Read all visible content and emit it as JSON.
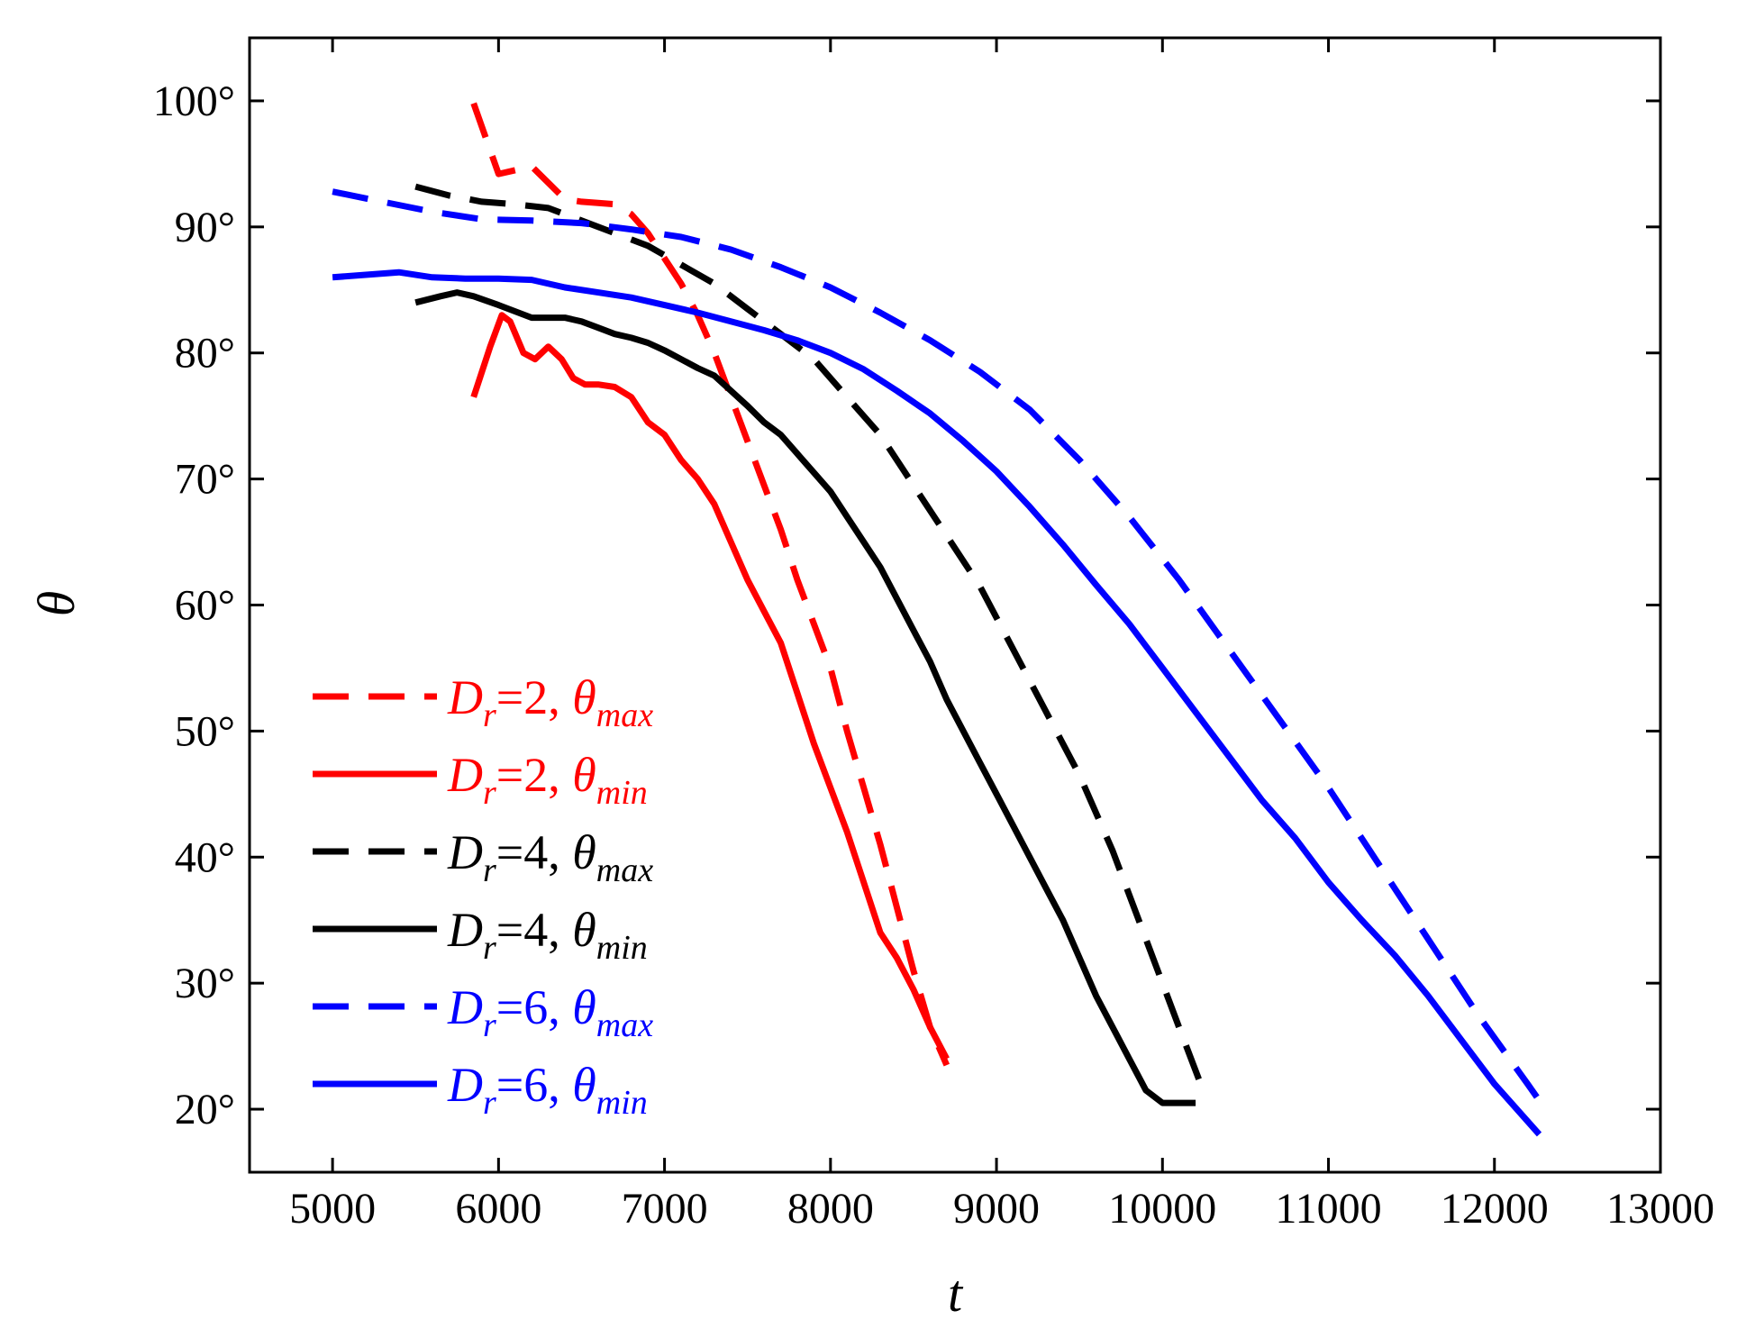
{
  "chart_data": {
    "type": "line",
    "title": "",
    "xlabel": "t",
    "ylabel": "θ",
    "xlim": [
      4500,
      13000
    ],
    "ylim": [
      15,
      105
    ],
    "xticks": [
      5000,
      6000,
      7000,
      8000,
      9000,
      10000,
      11000,
      12000,
      13000
    ],
    "yticks": [
      20,
      30,
      40,
      50,
      60,
      70,
      80,
      90,
      100
    ],
    "xtick_labels": [
      "5000",
      "6000",
      "7000",
      "8000",
      "9000",
      "10000",
      "11000",
      "12000",
      "13000"
    ],
    "ytick_labels": [
      "20°",
      "30°",
      "40°",
      "50°",
      "60°",
      "70°",
      "80°",
      "90°",
      "100°"
    ],
    "grid": false,
    "legend_position": "bottom-left",
    "series": [
      {
        "name": "Dr=2, θmax",
        "legend": {
          "D": "D",
          "sub1": "r",
          "eq": "=2, ",
          "theta": "θ",
          "sub2": "max"
        },
        "color": "#ff0000",
        "dash": "dashed",
        "x": [
          5850,
          6000,
          6100,
          6200,
          6300,
          6400,
          6500,
          6600,
          6700,
          6800,
          6900,
          7000,
          7100,
          7200,
          7300,
          7400,
          7500,
          7600,
          7700,
          7800,
          7900,
          8000,
          8100,
          8200,
          8300,
          8400,
          8500,
          8600,
          8700
        ],
        "y": [
          99.8,
          94.2,
          94.5,
          94.8,
          93.5,
          92.2,
          92.0,
          91.9,
          91.8,
          91.0,
          89.5,
          87.5,
          85.5,
          83.0,
          80.0,
          76.5,
          73.0,
          69.5,
          66.0,
          62.0,
          58.5,
          55.0,
          50.0,
          45.5,
          41.0,
          36.0,
          31.0,
          26.5,
          23.5
        ]
      },
      {
        "name": "Dr=2, θmin",
        "legend": {
          "D": "D",
          "sub1": "r",
          "eq": "=2, ",
          "theta": "θ",
          "sub2": "min"
        },
        "color": "#ff0000",
        "dash": "solid",
        "x": [
          5850,
          5950,
          6020,
          6070,
          6150,
          6220,
          6300,
          6380,
          6450,
          6520,
          6600,
          6700,
          6800,
          6900,
          7000,
          7100,
          7200,
          7300,
          7400,
          7500,
          7600,
          7700,
          7800,
          7900,
          8000,
          8100,
          8200,
          8300,
          8400,
          8500,
          8600,
          8700
        ],
        "y": [
          76.5,
          80.5,
          83.0,
          82.5,
          80.0,
          79.5,
          80.5,
          79.5,
          78.0,
          77.5,
          77.5,
          77.3,
          76.5,
          74.5,
          73.5,
          71.5,
          70.0,
          68.0,
          65.0,
          62.0,
          59.5,
          57.0,
          53.0,
          49.0,
          45.5,
          42.0,
          38.0,
          34.0,
          32.0,
          29.5,
          26.5,
          24.0
        ]
      },
      {
        "name": "Dr=4, θmax",
        "legend": {
          "D": "D",
          "sub1": "r",
          "eq": "=4, ",
          "theta": "θ",
          "sub2": "max"
        },
        "color": "#000000",
        "dash": "dashed",
        "x": [
          5500,
          5700,
          5900,
          6100,
          6300,
          6500,
          6700,
          6900,
          7100,
          7300,
          7500,
          7700,
          7900,
          8100,
          8300,
          8500,
          8700,
          8900,
          9100,
          9300,
          9500,
          9700,
          9900,
          10100,
          10230
        ],
        "y": [
          93.2,
          92.5,
          92.0,
          91.8,
          91.5,
          90.5,
          89.5,
          88.5,
          87.0,
          85.5,
          83.5,
          81.5,
          79.5,
          76.5,
          73.5,
          69.5,
          65.5,
          61.5,
          56.5,
          51.5,
          46.5,
          40.5,
          33.5,
          26.5,
          22.0
        ]
      },
      {
        "name": "Dr=4, θmin",
        "legend": {
          "D": "D",
          "sub1": "r",
          "eq": "=4, ",
          "theta": "θ",
          "sub2": "min"
        },
        "color": "#000000",
        "dash": "solid",
        "x": [
          5500,
          5650,
          5750,
          5850,
          6000,
          6200,
          6400,
          6500,
          6600,
          6700,
          6800,
          6900,
          7000,
          7100,
          7200,
          7300,
          7400,
          7500,
          7600,
          7700,
          7800,
          7900,
          8000,
          8100,
          8200,
          8300,
          8400,
          8500,
          8600,
          8700,
          8800,
          8900,
          9000,
          9100,
          9200,
          9300,
          9400,
          9500,
          9600,
          9700,
          9800,
          9900,
          10000,
          10100,
          10200
        ],
        "y": [
          84.0,
          84.5,
          84.8,
          84.5,
          83.8,
          82.8,
          82.8,
          82.5,
          82.0,
          81.5,
          81.2,
          80.8,
          80.2,
          79.5,
          78.8,
          78.2,
          77.0,
          75.8,
          74.5,
          73.5,
          72.0,
          70.5,
          69.0,
          67.0,
          65.0,
          63.0,
          60.5,
          58.0,
          55.5,
          52.5,
          50.0,
          47.5,
          45.0,
          42.5,
          40.0,
          37.5,
          35.0,
          32.0,
          29.0,
          26.5,
          24.0,
          21.5,
          20.5,
          20.5,
          20.5
        ]
      },
      {
        "name": "Dr=6, θmax",
        "legend": {
          "D": "D",
          "sub1": "r",
          "eq": "=6, ",
          "theta": "θ",
          "sub2": "max"
        },
        "color": "#0000ff",
        "dash": "dashed",
        "x": [
          5000,
          5300,
          5600,
          5900,
          6200,
          6500,
          6800,
          7100,
          7400,
          7700,
          8000,
          8300,
          8600,
          8900,
          9200,
          9500,
          9800,
          10100,
          10400,
          10700,
          11000,
          11300,
          11600,
          11900,
          12200,
          12280
        ],
        "y": [
          92.8,
          92.0,
          91.2,
          90.6,
          90.5,
          90.3,
          89.8,
          89.2,
          88.2,
          86.8,
          85.2,
          83.2,
          81.0,
          78.5,
          75.5,
          71.5,
          67.0,
          62.0,
          56.5,
          51.0,
          45.5,
          39.5,
          33.5,
          27.5,
          22.0,
          20.5
        ]
      },
      {
        "name": "Dr=6, θmin",
        "legend": {
          "D": "D",
          "sub1": "r",
          "eq": "=6, ",
          "theta": "θ",
          "sub2": "min"
        },
        "color": "#0000ff",
        "dash": "solid",
        "x": [
          5000,
          5200,
          5400,
          5600,
          5800,
          6000,
          6200,
          6400,
          6600,
          6800,
          7000,
          7200,
          7400,
          7600,
          7800,
          8000,
          8200,
          8400,
          8600,
          8800,
          9000,
          9200,
          9400,
          9600,
          9800,
          10000,
          10200,
          10400,
          10600,
          10800,
          11000,
          11200,
          11400,
          11600,
          11800,
          12000,
          12270
        ],
        "y": [
          86.0,
          86.2,
          86.4,
          86.0,
          85.9,
          85.9,
          85.8,
          85.2,
          84.8,
          84.4,
          83.8,
          83.2,
          82.5,
          81.8,
          81.0,
          80.0,
          78.7,
          77.0,
          75.2,
          73.0,
          70.6,
          67.8,
          64.8,
          61.6,
          58.5,
          55.0,
          51.5,
          48.0,
          44.5,
          41.5,
          38.0,
          35.0,
          32.2,
          29.0,
          25.5,
          22.0,
          18.0
        ]
      }
    ]
  }
}
